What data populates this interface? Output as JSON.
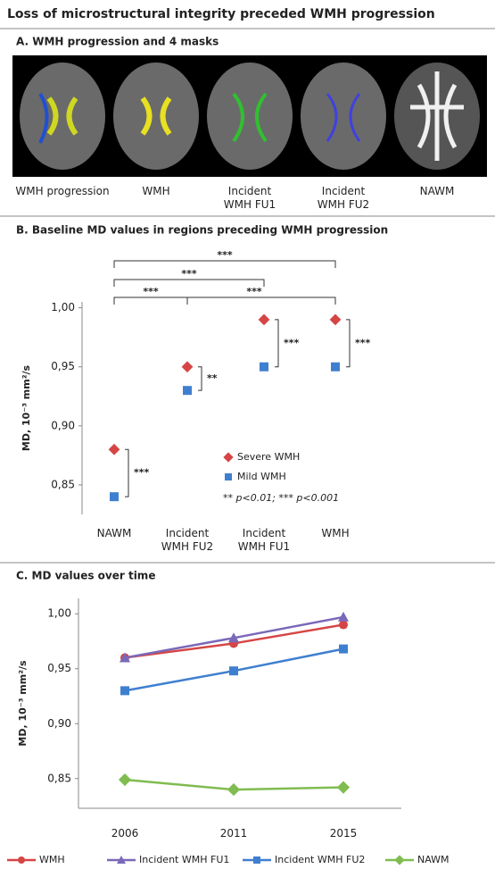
{
  "title": "Loss of microstructural integrity preceded WMH progression",
  "panel_a": {
    "heading": "A. WMH progression and 4 masks",
    "labels": [
      "WMH progression",
      "WMH",
      "Incident WMH FU1",
      "Incident WMH FU2",
      "NAWM"
    ]
  },
  "chart_data": [
    {
      "type": "dot",
      "title": "B. Baseline MD values in regions preceding WMH progression",
      "y_label": "MD, 10⁻³ mm²/s",
      "categories": [
        "NAWM",
        "Incident WMH FU2",
        "Incident WMH FU1",
        "WMH"
      ],
      "series": [
        {
          "name": "Severe WMH",
          "color": "#d64545",
          "marker": "diamond",
          "values": [
            0.88,
            0.95,
            0.99,
            0.99
          ]
        },
        {
          "name": "Mild WMH",
          "color": "#3f7fcf",
          "marker": "square",
          "values": [
            0.84,
            0.93,
            0.95,
            0.95
          ]
        }
      ],
      "ylim": [
        0.825,
        1.005
      ],
      "yticks": [
        {
          "value": 0.85,
          "label": "0,85"
        },
        {
          "value": 0.9,
          "label": "0,90"
        },
        {
          "value": 0.95,
          "label": "0,95"
        },
        {
          "value": 1.0,
          "label": "1,00"
        }
      ],
      "annotations": [
        "***",
        "***",
        "***",
        "***",
        "***",
        "**",
        "***",
        "***"
      ],
      "note": "** p<0.01; *** p<0.001"
    },
    {
      "type": "line",
      "title": "C. MD values over time",
      "y_label": "MD, 10⁻³ mm²/s",
      "categories": [
        "2006",
        "2011",
        "2015"
      ],
      "series": [
        {
          "name": "WMH",
          "color": "#d64545",
          "marker": "circle",
          "values": [
            0.96,
            0.973,
            0.99
          ]
        },
        {
          "name": "Incident WMH FU1",
          "color": "#7a68b8",
          "marker": "triangle",
          "values": [
            0.96,
            0.978,
            0.997
          ]
        },
        {
          "name": "Incident WMH FU2",
          "color": "#3f7fcf",
          "marker": "square",
          "values": [
            0.93,
            0.948,
            0.968
          ]
        },
        {
          "name": "NAWM",
          "color": "#80bc50",
          "marker": "diamond",
          "values": [
            0.849,
            0.84,
            0.842
          ]
        }
      ],
      "ylim": [
        0.823,
        1.014
      ],
      "yticks": [
        {
          "value": 0.85,
          "label": "0,85"
        },
        {
          "value": 0.9,
          "label": "0,90"
        },
        {
          "value": 0.95,
          "label": "0,95"
        },
        {
          "value": 1.0,
          "label": "1,00"
        }
      ]
    }
  ]
}
